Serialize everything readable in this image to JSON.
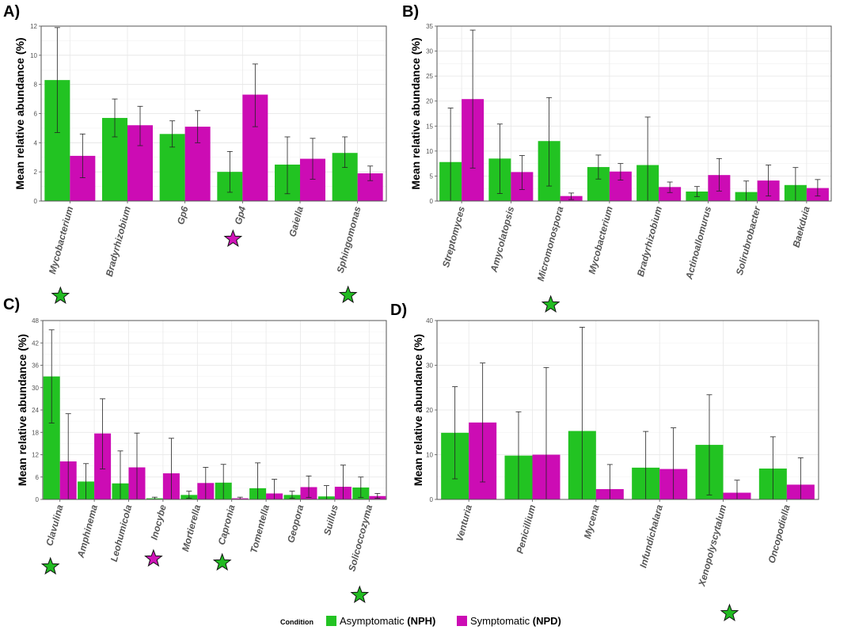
{
  "colors": {
    "asymptomatic": "#22c322",
    "symptomatic": "#cc0cb4",
    "star_green": "#22bb22",
    "star_pink": "#d014b8"
  },
  "legend": {
    "title": "Condition",
    "items": [
      {
        "label": "Asymptomatic ",
        "code": "(NPH)",
        "color": "#22c322"
      },
      {
        "label": "Symptomatic ",
        "code": "(NPD)",
        "color": "#cc0cb4"
      }
    ]
  },
  "chart_data": [
    {
      "id": "A",
      "type": "bar",
      "panel_label": "A)",
      "ylabel": "Mean relative abundance (%)",
      "ylim": [
        0,
        12
      ],
      "yticks": [
        0,
        2,
        4,
        6,
        8,
        10,
        12
      ],
      "categories": [
        "Mycobacterium",
        "Bradyrhizobium",
        "Gp6",
        "Gp4",
        "Gaiella",
        "Sphingomonas"
      ],
      "series": [
        {
          "name": "Asymptomatic (NPH)",
          "values": [
            8.3,
            5.7,
            4.6,
            2.0,
            2.5,
            3.3
          ],
          "err_low": [
            4.7,
            4.4,
            3.7,
            0.6,
            0.5,
            2.3
          ],
          "err_high": [
            11.9,
            7.0,
            5.5,
            3.4,
            4.4,
            4.4
          ]
        },
        {
          "name": "Symptomatic (NPD)",
          "values": [
            3.1,
            5.2,
            5.1,
            7.3,
            2.9,
            1.9
          ],
          "err_low": [
            1.6,
            3.8,
            4.0,
            5.1,
            1.5,
            1.4
          ],
          "err_high": [
            4.6,
            6.5,
            6.2,
            9.4,
            4.3,
            2.4
          ]
        }
      ],
      "stars": [
        {
          "category": "Mycobacterium",
          "color": "green"
        },
        {
          "category": "Gp4",
          "color": "pink"
        },
        {
          "category": "Sphingomonas",
          "color": "green"
        }
      ]
    },
    {
      "id": "B",
      "type": "bar",
      "panel_label": "B)",
      "ylabel": "Mean relative abundance (%)",
      "ylim": [
        0,
        35
      ],
      "yticks": [
        0,
        5,
        10,
        15,
        20,
        25,
        30,
        35
      ],
      "categories": [
        "Streptomyces",
        "Amycolatopsis",
        "Micromonospora",
        "Mycobacterium",
        "Bradyrhizobium",
        "Actinoallomurus",
        "Solirubrobacter",
        "Baekduia"
      ],
      "series": [
        {
          "name": "Asymptomatic (NPH)",
          "values": [
            7.8,
            8.5,
            12.0,
            6.8,
            7.2,
            1.9,
            1.8,
            3.2
          ],
          "err_low": [
            0,
            1.5,
            3.0,
            4.4,
            0,
            0.9,
            0,
            0
          ],
          "err_high": [
            18.6,
            15.4,
            20.7,
            9.2,
            16.8,
            2.9,
            4.0,
            6.7
          ]
        },
        {
          "name": "Symptomatic (NPD)",
          "values": [
            20.4,
            5.8,
            1.0,
            5.9,
            2.8,
            5.2,
            4.1,
            2.6
          ],
          "err_low": [
            6.6,
            2.3,
            0.3,
            4.2,
            1.7,
            2.0,
            1.0,
            1.0
          ],
          "err_high": [
            34.2,
            9.1,
            1.6,
            7.5,
            3.8,
            8.5,
            7.2,
            4.3
          ]
        }
      ],
      "stars": [
        {
          "category": "Micromonospora",
          "color": "green"
        }
      ]
    },
    {
      "id": "C",
      "type": "bar",
      "panel_label": "C)",
      "ylabel": "Mean relative abundance (%)",
      "ylim": [
        0,
        48
      ],
      "yticks": [
        0,
        6,
        12,
        18,
        24,
        30,
        36,
        42,
        48
      ],
      "ytick_labels": [
        "0",
        "6",
        "12",
        "18",
        "24",
        "30",
        "36",
        "42",
        "48"
      ],
      "categories": [
        "Clavulina",
        "Amphinema",
        "Leohumicola",
        "Inocybe",
        "Mortierella",
        "Capronia",
        "Tomentella",
        "Geopora",
        "Suillus",
        "Solicoccozyma"
      ],
      "series": [
        {
          "name": "Asymptomatic (NPH)",
          "values": [
            33.0,
            4.8,
            4.3,
            0.3,
            1.2,
            4.5,
            3.0,
            1.2,
            0.8,
            3.2
          ],
          "err_low": [
            20.5,
            0,
            0,
            0,
            0.3,
            0,
            0,
            0.3,
            0,
            0.5
          ],
          "err_high": [
            45.5,
            9.6,
            13.0,
            0.6,
            2.2,
            9.4,
            9.8,
            2.2,
            3.7,
            6.0
          ]
        },
        {
          "name": "Symptomatic (NPD)",
          "values": [
            10.2,
            17.7,
            8.6,
            7.0,
            4.4,
            0.3,
            1.6,
            3.3,
            3.4,
            0.9
          ],
          "err_low": [
            0,
            8.2,
            0,
            0,
            0,
            0,
            0,
            0.5,
            0,
            0.3
          ],
          "err_high": [
            23.0,
            27.0,
            17.8,
            16.4,
            8.6,
            0.6,
            5.4,
            6.3,
            9.2,
            1.6
          ]
        }
      ],
      "stars": [
        {
          "category": "Clavulina",
          "color": "green"
        },
        {
          "category": "Inocybe",
          "color": "pink"
        },
        {
          "category": "Capronia",
          "color": "green"
        },
        {
          "category": "Solicoccozyma",
          "color": "green"
        }
      ]
    },
    {
      "id": "D",
      "type": "bar",
      "panel_label": "D)",
      "ylabel": "Mean relative abundance (%)",
      "ylim": [
        0,
        40
      ],
      "yticks": [
        0,
        10,
        20,
        30,
        40
      ],
      "categories": [
        "Venturia",
        "Penicillium",
        "Mycena",
        "Infundichalara",
        "Xenopolyscytalum",
        "Oncopodiella"
      ],
      "series": [
        {
          "name": "Asymptomatic (NPH)",
          "values": [
            14.9,
            9.8,
            15.3,
            7.1,
            12.2,
            6.9
          ],
          "err_low": [
            4.6,
            0,
            0,
            0,
            1.0,
            0
          ],
          "err_high": [
            25.2,
            19.6,
            38.5,
            15.2,
            23.4,
            14.0
          ]
        },
        {
          "name": "Symptomatic (NPD)",
          "values": [
            17.2,
            10.0,
            2.3,
            6.8,
            1.5,
            3.3
          ],
          "err_low": [
            3.9,
            0,
            0,
            0,
            0,
            0
          ],
          "err_high": [
            30.5,
            29.5,
            7.8,
            16.0,
            4.3,
            9.3
          ]
        }
      ],
      "stars": [
        {
          "category": "Xenopolyscytalum",
          "color": "green"
        }
      ]
    }
  ]
}
